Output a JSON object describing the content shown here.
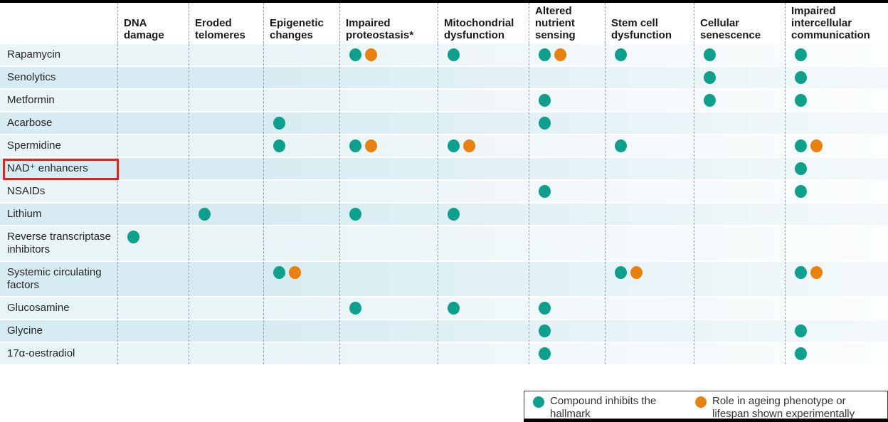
{
  "colors": {
    "teal": "#0ca18c",
    "orange": "#e8820c",
    "highlight_red": "#ee2014",
    "row_light": "#e9f4f7",
    "row_dark": "#d7ecf2",
    "dashed_line": "#8f9ba0"
  },
  "chart_data": {
    "type": "table",
    "columns": [
      "DNA damage",
      "Eroded telomeres",
      "Epigenetic changes",
      "Impaired proteostasis*",
      "Mitochondrial dysfunction",
      "Altered nutrient sensing",
      "Stem cell dysfunction",
      "Cellular senescence",
      "Impaired intercellular communication"
    ],
    "legend": {
      "teal": "Compound inhibits the hallmark",
      "orange": "Role in ageing phenotype or lifespan shown experimentally"
    },
    "rows": [
      {
        "compound": "Rapamycin",
        "highlighted": false,
        "marks": [
          {
            "column": "Impaired proteostasis*",
            "dots": [
              "teal",
              "orange"
            ]
          },
          {
            "column": "Mitochondrial dysfunction",
            "dots": [
              "teal"
            ]
          },
          {
            "column": "Altered nutrient sensing",
            "dots": [
              "teal",
              "orange"
            ]
          },
          {
            "column": "Stem cell dysfunction",
            "dots": [
              "teal"
            ]
          },
          {
            "column": "Cellular senescence",
            "dots": [
              "teal"
            ]
          },
          {
            "column": "Impaired intercellular communication",
            "dots": [
              "teal"
            ]
          }
        ]
      },
      {
        "compound": "Senolytics",
        "highlighted": false,
        "marks": [
          {
            "column": "Cellular senescence",
            "dots": [
              "teal"
            ]
          },
          {
            "column": "Impaired intercellular communication",
            "dots": [
              "teal"
            ]
          }
        ]
      },
      {
        "compound": "Metformin",
        "highlighted": false,
        "marks": [
          {
            "column": "Altered nutrient sensing",
            "dots": [
              "teal"
            ]
          },
          {
            "column": "Cellular senescence",
            "dots": [
              "teal"
            ]
          },
          {
            "column": "Impaired intercellular communication",
            "dots": [
              "teal"
            ]
          }
        ]
      },
      {
        "compound": "Acarbose",
        "highlighted": false,
        "marks": [
          {
            "column": "Epigenetic changes",
            "dots": [
              "teal"
            ]
          },
          {
            "column": "Altered nutrient sensing",
            "dots": [
              "teal"
            ]
          }
        ]
      },
      {
        "compound": "Spermidine",
        "highlighted": false,
        "marks": [
          {
            "column": "Epigenetic changes",
            "dots": [
              "teal"
            ]
          },
          {
            "column": "Impaired proteostasis*",
            "dots": [
              "teal",
              "orange"
            ]
          },
          {
            "column": "Mitochondrial dysfunction",
            "dots": [
              "teal",
              "orange"
            ]
          },
          {
            "column": "Stem cell dysfunction",
            "dots": [
              "teal"
            ]
          },
          {
            "column": "Impaired intercellular communication",
            "dots": [
              "teal",
              "orange"
            ]
          }
        ]
      },
      {
        "compound": "NAD⁺ enhancers",
        "highlighted": true,
        "marks": [
          {
            "column": "Impaired intercellular communication",
            "dots": [
              "teal"
            ]
          }
        ]
      },
      {
        "compound": "NSAIDs",
        "highlighted": false,
        "marks": [
          {
            "column": "Altered nutrient sensing",
            "dots": [
              "teal"
            ]
          },
          {
            "column": "Impaired intercellular communication",
            "dots": [
              "teal"
            ]
          }
        ]
      },
      {
        "compound": "Lithium",
        "highlighted": false,
        "marks": [
          {
            "column": "Eroded telomeres",
            "dots": [
              "teal"
            ]
          },
          {
            "column": "Impaired proteostasis*",
            "dots": [
              "teal"
            ]
          },
          {
            "column": "Mitochondrial dysfunction",
            "dots": [
              "teal"
            ]
          }
        ]
      },
      {
        "compound": "Reverse transcriptase inhibitors",
        "highlighted": false,
        "marks": [
          {
            "column": "DNA damage",
            "dots": [
              "teal"
            ]
          }
        ]
      },
      {
        "compound": "Systemic circulating factors",
        "highlighted": false,
        "marks": [
          {
            "column": "Epigenetic changes",
            "dots": [
              "teal",
              "orange"
            ]
          },
          {
            "column": "Stem cell dysfunction",
            "dots": [
              "teal",
              "orange"
            ]
          },
          {
            "column": "Impaired intercellular communication",
            "dots": [
              "teal",
              "orange"
            ]
          }
        ]
      },
      {
        "compound": "Glucosamine",
        "highlighted": false,
        "marks": [
          {
            "column": "Impaired proteostasis*",
            "dots": [
              "teal"
            ]
          },
          {
            "column": "Mitochondrial dysfunction",
            "dots": [
              "teal"
            ]
          },
          {
            "column": "Altered nutrient sensing",
            "dots": [
              "teal"
            ]
          }
        ]
      },
      {
        "compound": "Glycine",
        "highlighted": false,
        "marks": [
          {
            "column": "Altered nutrient sensing",
            "dots": [
              "teal"
            ]
          },
          {
            "column": "Impaired intercellular communication",
            "dots": [
              "teal"
            ]
          }
        ]
      },
      {
        "compound": "17α-oestradiol",
        "highlighted": false,
        "marks": [
          {
            "column": "Altered nutrient sensing",
            "dots": [
              "teal"
            ]
          },
          {
            "column": "Impaired intercellular communication",
            "dots": [
              "teal"
            ]
          }
        ]
      }
    ]
  }
}
